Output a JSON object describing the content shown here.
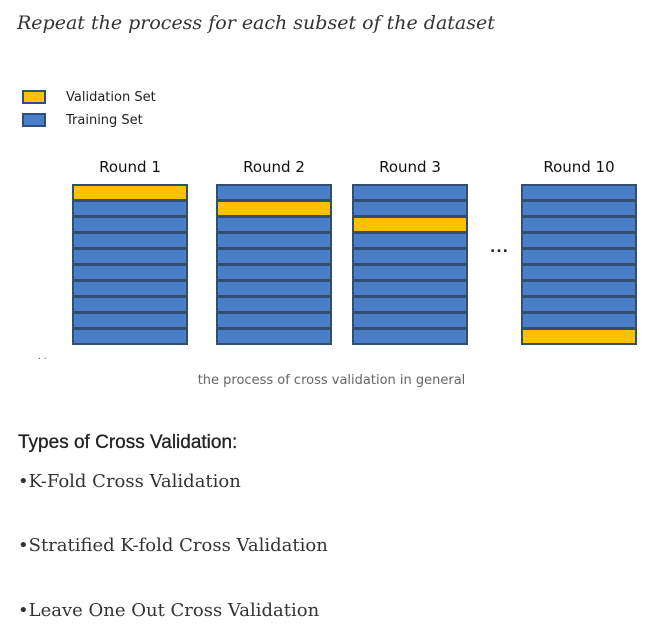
{
  "heading": "Repeat the process for each subset of the dataset",
  "legend": {
    "items": [
      {
        "label": "Validation Set",
        "color": "#FFC000"
      },
      {
        "label": "Training Set",
        "color": "#4A7EC7"
      }
    ]
  },
  "diagram": {
    "folds_per_round": 10,
    "rounds": [
      {
        "label": "Round 1",
        "validation_fold": 1
      },
      {
        "label": "Round 2",
        "validation_fold": 2
      },
      {
        "label": "Round 3",
        "validation_fold": 3
      },
      {
        "label": "Round 10",
        "validation_fold": 10
      }
    ],
    "ellipsis": "...",
    "dots": ". ."
  },
  "caption": "the process of cross validation in general",
  "types": {
    "title": "Types of Cross Validation:",
    "items": [
      "•K-Fold Cross Validation",
      "•Stratified K-fold Cross Validation",
      "•Leave One Out Cross Validation"
    ]
  }
}
